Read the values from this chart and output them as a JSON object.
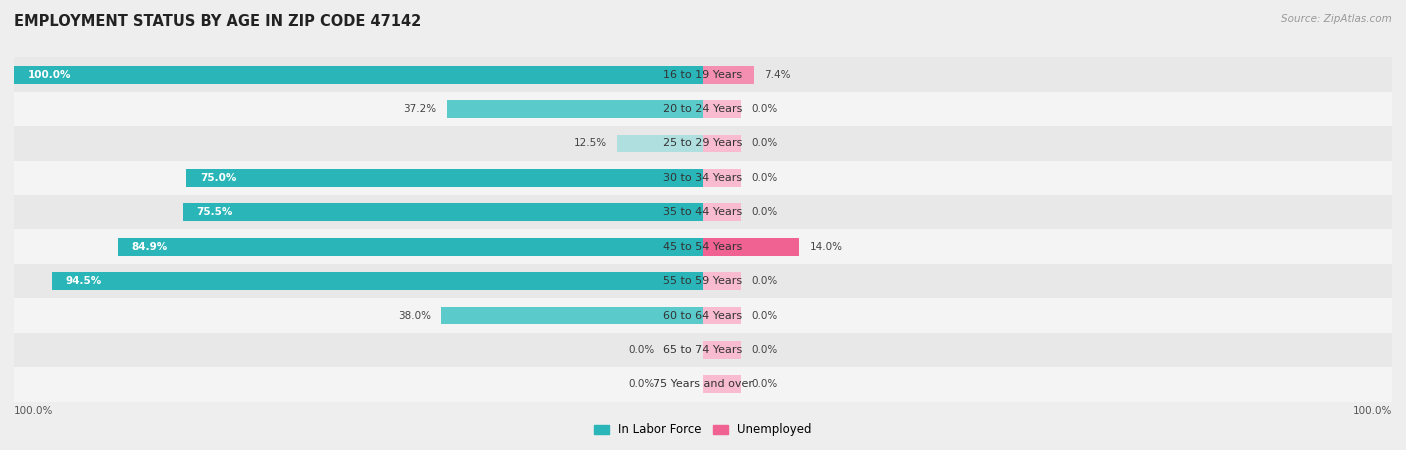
{
  "title": "EMPLOYMENT STATUS BY AGE IN ZIP CODE 47142",
  "source": "Source: ZipAtlas.com",
  "age_groups": [
    "16 to 19 Years",
    "20 to 24 Years",
    "25 to 29 Years",
    "30 to 34 Years",
    "35 to 44 Years",
    "45 to 54 Years",
    "55 to 59 Years",
    "60 to 64 Years",
    "65 to 74 Years",
    "75 Years and over"
  ],
  "labor_force": [
    100.0,
    37.2,
    12.5,
    75.0,
    75.5,
    84.9,
    94.5,
    38.0,
    0.0,
    0.0
  ],
  "unemployed": [
    7.4,
    0.0,
    0.0,
    0.0,
    0.0,
    14.0,
    0.0,
    0.0,
    0.0,
    0.0
  ],
  "labor_color_high": "#2ab5b8",
  "labor_color_low": "#b0dfe0",
  "unemployed_color_high": "#f06292",
  "unemployed_color_low": "#f8bbd0",
  "bg_color": "#eeeeee",
  "title_fontsize": 10.5,
  "label_fontsize": 8,
  "value_fontsize": 7.5,
  "legend_fontsize": 8.5,
  "bar_height": 0.52,
  "min_ue_bar": 5.5
}
